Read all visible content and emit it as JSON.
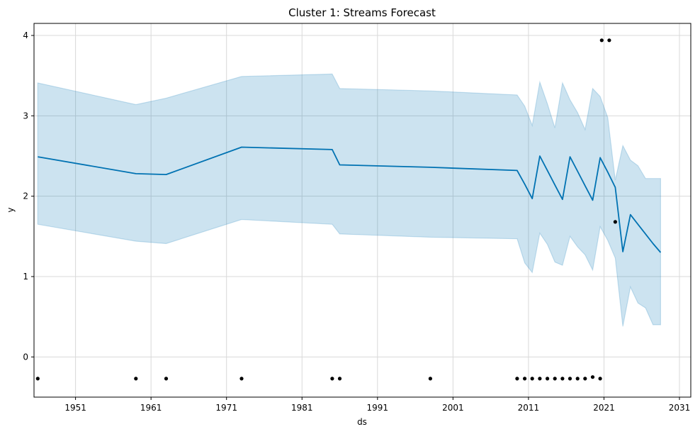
{
  "chart_data": {
    "type": "line",
    "title": "Cluster 1: Streams Forecast",
    "xlabel": "ds",
    "ylabel": "y",
    "x_ticks": [
      "1951",
      "1961",
      "1971",
      "1981",
      "1991",
      "2001",
      "2011",
      "2021",
      "2031"
    ],
    "x_tick_years": [
      1951,
      1961,
      1971,
      1981,
      1991,
      2001,
      2011,
      2021,
      2031
    ],
    "y_ticks": [
      "0",
      "1",
      "2",
      "3",
      "4"
    ],
    "y_tick_values": [
      0,
      1,
      2,
      3,
      4
    ],
    "xlim": [
      1945.5,
      2032.5
    ],
    "ylim": [
      -0.5,
      4.15
    ],
    "grid": true,
    "colors": {
      "forecast_line": "#0072b2",
      "uncertainty_fill": "#0072b2",
      "observed_points": "#000000",
      "grid": "#d9d9d9"
    },
    "series": [
      {
        "kind": "forecast",
        "x": [
          1946,
          1959,
          1963,
          1973,
          1985,
          1986,
          1998,
          2009.5,
          2010.5,
          2011.5,
          2012.5,
          2013.5,
          2014.5,
          2015.5,
          2016.5,
          2017.5,
          2018.5,
          2019.5,
          2020.5,
          2021.5,
          2022.5,
          2023.5,
          2024.5,
          2025.5,
          2026.5,
          2027.5,
          2028.5
        ],
        "values": [
          2.49,
          2.28,
          2.27,
          2.61,
          2.58,
          2.39,
          2.36,
          2.32,
          2.15,
          1.97,
          2.5,
          2.32,
          2.14,
          1.96,
          2.49,
          2.31,
          2.13,
          1.95,
          2.48,
          2.3,
          2.11,
          1.31,
          1.77,
          1.65,
          1.53,
          1.41,
          1.3
        ]
      },
      {
        "kind": "uncertainty_upper",
        "x": [
          1946,
          1959,
          1963,
          1973,
          1985,
          1986,
          1998,
          2009.5,
          2010.5,
          2011.5,
          2012.5,
          2013.5,
          2014.5,
          2015.5,
          2016.5,
          2017.5,
          2018.5,
          2019.5,
          2020.5,
          2021.5,
          2022.5,
          2023.5,
          2024.5,
          2025.5,
          2026.5,
          2027.5,
          2028.5
        ],
        "values": [
          3.41,
          3.14,
          3.22,
          3.49,
          3.52,
          3.34,
          3.31,
          3.26,
          3.12,
          2.88,
          3.42,
          3.15,
          2.85,
          3.41,
          3.2,
          3.04,
          2.83,
          3.34,
          3.24,
          2.98,
          2.2,
          2.63,
          2.45,
          2.38,
          2.22,
          2.22,
          2.22
        ]
      },
      {
        "kind": "uncertainty_lower",
        "x": [
          1946,
          1959,
          1963,
          1973,
          1985,
          1986,
          1998,
          2009.5,
          2010.5,
          2011.5,
          2012.5,
          2013.5,
          2014.5,
          2015.5,
          2016.5,
          2017.5,
          2018.5,
          2019.5,
          2020.5,
          2021.5,
          2022.5,
          2023.5,
          2024.5,
          2025.5,
          2026.5,
          2027.5,
          2028.5
        ],
        "values": [
          1.65,
          1.44,
          1.41,
          1.71,
          1.65,
          1.53,
          1.49,
          1.47,
          1.17,
          1.05,
          1.54,
          1.4,
          1.18,
          1.14,
          1.5,
          1.37,
          1.27,
          1.08,
          1.62,
          1.45,
          1.23,
          0.38,
          0.87,
          0.67,
          0.61,
          0.4,
          0.4
        ]
      }
    ],
    "observed_points": {
      "x": [
        1946,
        1959,
        1963,
        1973,
        1985,
        1986,
        1998,
        2009.5,
        2010.5,
        2011.5,
        2012.5,
        2013.5,
        2014.5,
        2015.5,
        2016.5,
        2017.5,
        2018.5,
        2019.5,
        2020.5,
        2020.7,
        2021.7,
        2022.5
      ],
      "y": [
        -0.27,
        -0.27,
        -0.27,
        -0.27,
        -0.27,
        -0.27,
        -0.27,
        -0.27,
        -0.27,
        -0.27,
        -0.27,
        -0.27,
        -0.27,
        -0.27,
        -0.27,
        -0.27,
        -0.27,
        -0.25,
        -0.27,
        3.94,
        3.94,
        1.68
      ]
    }
  }
}
